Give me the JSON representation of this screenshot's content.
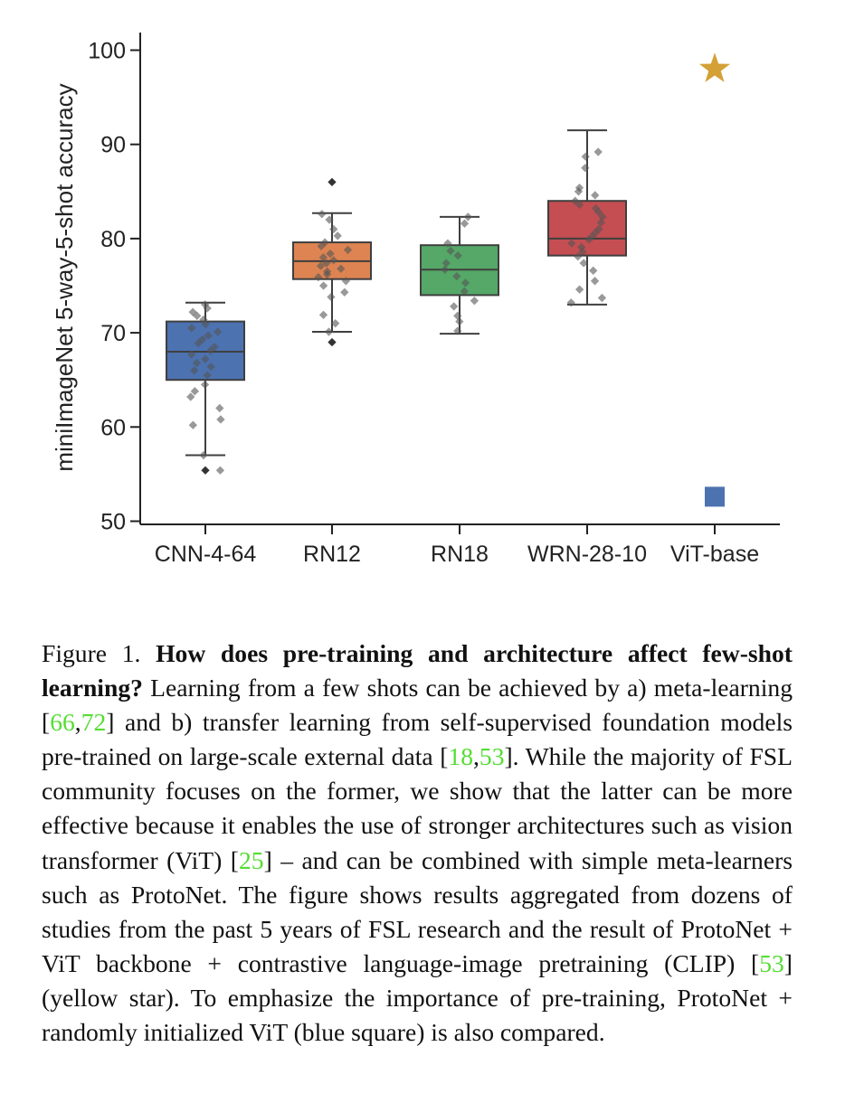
{
  "chart_data": {
    "type": "box",
    "title": "",
    "xlabel": "",
    "ylabel": "miniImageNet 5-way-5-shot accuracy",
    "ylim": [
      50,
      102
    ],
    "yticks": [
      50,
      60,
      70,
      80,
      90,
      100
    ],
    "grid": false,
    "categories": [
      "CNN-4-64",
      "RN12",
      "RN18",
      "WRN-28-10",
      "ViT-base"
    ],
    "boxes": [
      {
        "category": "CNN-4-64",
        "color": "#4c72b0",
        "whisker_low": 57.0,
        "q1": 65.0,
        "median": 68.0,
        "q3": 71.2,
        "whisker_high": 73.2,
        "points": [
          73.0,
          72.6,
          72.2,
          71.8,
          71.4,
          70.9,
          70.5,
          70.1,
          69.7,
          69.3,
          68.9,
          68.5,
          68.1,
          67.7,
          67.2,
          66.8,
          66.4,
          66.0,
          65.5,
          64.5,
          63.8,
          63.2,
          62.0,
          60.8,
          60.2,
          57.0,
          55.4
        ],
        "outliers": [
          55.4
        ]
      },
      {
        "category": "RN12",
        "color": "#dd8452",
        "whisker_low": 70.1,
        "q1": 75.7,
        "median": 77.6,
        "q3": 79.6,
        "whisker_high": 82.7,
        "points": [
          82.6,
          82.0,
          81.0,
          80.3,
          79.6,
          79.2,
          78.8,
          78.4,
          78.0,
          77.7,
          77.4,
          77.1,
          76.8,
          76.5,
          76.2,
          75.9,
          75.5,
          75.0,
          74.3,
          73.8,
          71.9,
          71.0,
          70.1
        ],
        "outliers": [
          86.0,
          69.0
        ]
      },
      {
        "category": "RN18",
        "color": "#55a868",
        "whisker_low": 69.9,
        "q1": 74.0,
        "median": 76.7,
        "q3": 79.3,
        "whisker_high": 82.3,
        "points": [
          82.3,
          81.6,
          79.5,
          78.7,
          78.2,
          77.4,
          76.7,
          76.0,
          75.3,
          74.4,
          73.4,
          72.8,
          71.8,
          71.2,
          70.2
        ],
        "outliers": []
      },
      {
        "category": "WRN-28-10",
        "color": "#c44e52",
        "whisker_low": 73.0,
        "q1": 78.2,
        "median": 80.0,
        "q3": 84.0,
        "whisker_high": 91.5,
        "points": [
          89.2,
          88.7,
          87.5,
          85.4,
          85.0,
          84.6,
          84.0,
          83.6,
          83.2,
          82.8,
          82.3,
          81.7,
          81.0,
          80.6,
          80.2,
          79.9,
          79.5,
          79.1,
          78.6,
          78.1,
          77.4,
          76.6,
          75.5,
          74.6,
          73.7,
          73.2
        ],
        "outliers": []
      }
    ],
    "markers": [
      {
        "category": "ViT-base",
        "shape": "star",
        "color": "#d4a137",
        "value": 98.0,
        "annotation": "ProtoNet + ViT + CLIP"
      },
      {
        "category": "ViT-base",
        "shape": "square",
        "color": "#4c72b0",
        "value": 52.6,
        "annotation": "ProtoNet + randomly initialized ViT"
      }
    ]
  },
  "caption": {
    "label": "Figure 1.",
    "bold": "How does pre-training and architecture affect few-shot learning?",
    "seg1": " Learning from a few shots can be achieved by a) meta-learning [",
    "cite1": "66",
    "sep1": ",",
    "cite2": "72",
    "seg2": "] and b) transfer learning from self-supervised foundation models pre-trained on large-scale external data [",
    "cite3": "18",
    "sep2": ",",
    "cite4": "53",
    "seg3": "]. While the majority of FSL community focuses on the former, we show that the latter can be more effective because it enables the use of stronger architectures such as vision transformer (ViT) [",
    "cite5": "25",
    "seg4": "] – and can be combined with simple meta-learners such as ProtoNet. The figure shows results aggregated from dozens of studies from the past 5 years of FSL research and the result of ProtoNet + ViT backbone + contrastive language-image pretraining (CLIP) [",
    "cite6": "53",
    "seg5": "] (yellow star). To emphasize the importance of pre-training, ProtoNet + randomly initialized ViT (blue square) is also compared."
  }
}
